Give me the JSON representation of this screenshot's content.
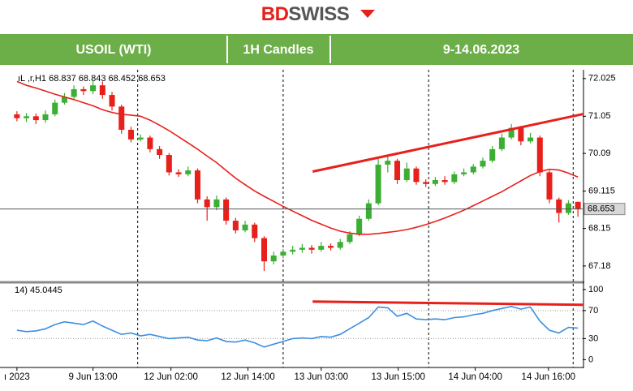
{
  "header": {
    "logo_a": "BD",
    "logo_b": "SWISS",
    "cells": [
      "USOIL (WTI)",
      "1H Candles",
      "9-14.06.2023"
    ]
  },
  "chart_data": [
    {
      "type": "candlestick",
      "title": "ıL ,r,H1  68.837 68.843 68.452 68.653",
      "up_color": "#3cae34",
      "down_color": "#e8201b",
      "open": [
        71.1,
        71.0,
        71.05,
        70.95,
        71.1,
        71.4,
        71.55,
        71.75,
        71.7,
        71.85,
        71.6,
        71.3,
        70.7,
        70.45,
        70.5,
        70.2,
        70.05,
        69.6,
        69.55,
        69.65,
        68.9,
        68.7,
        68.9,
        68.35,
        68.1,
        68.25,
        67.9,
        67.3,
        67.45,
        67.55,
        67.6,
        67.65,
        67.6,
        67.7,
        67.65,
        67.8,
        68.0,
        68.4,
        68.8,
        69.8,
        69.9,
        69.4,
        69.7,
        69.35,
        69.3,
        69.4,
        69.35,
        69.55,
        69.6,
        69.75,
        69.9,
        70.2,
        70.5,
        70.75,
        70.4,
        70.5,
        69.6,
        68.9,
        68.55,
        68.837
      ],
      "high": [
        71.18,
        71.13,
        71.12,
        71.2,
        71.48,
        71.65,
        71.85,
        71.82,
        72.0,
        71.95,
        71.68,
        71.35,
        70.78,
        70.58,
        70.55,
        70.28,
        70.1,
        69.68,
        69.75,
        69.7,
        68.98,
        69.0,
        68.95,
        68.42,
        68.35,
        68.3,
        67.95,
        67.55,
        67.62,
        67.7,
        67.75,
        67.72,
        67.8,
        67.76,
        67.88,
        68.08,
        68.48,
        68.9,
        69.95,
        70.05,
        69.95,
        69.85,
        69.75,
        69.42,
        69.48,
        69.5,
        69.62,
        69.7,
        69.82,
        69.98,
        70.28,
        70.6,
        70.85,
        70.8,
        70.62,
        70.55,
        69.65,
        68.95,
        68.88,
        68.843
      ],
      "low": [
        70.92,
        70.9,
        70.85,
        70.88,
        71.05,
        71.35,
        71.5,
        71.6,
        71.62,
        71.5,
        71.2,
        70.6,
        70.38,
        70.4,
        70.12,
        69.95,
        69.52,
        69.48,
        69.5,
        68.8,
        68.35,
        68.62,
        68.25,
        68.02,
        68.05,
        67.8,
        67.05,
        67.22,
        67.38,
        67.48,
        67.52,
        67.5,
        67.55,
        67.58,
        67.6,
        67.75,
        67.95,
        68.35,
        68.75,
        69.6,
        69.3,
        69.35,
        69.28,
        69.22,
        69.25,
        69.28,
        69.3,
        69.5,
        69.55,
        69.7,
        69.85,
        70.15,
        70.45,
        70.3,
        70.35,
        69.5,
        68.8,
        68.3,
        68.5,
        68.452
      ],
      "close": [
        71.0,
        71.05,
        70.95,
        71.1,
        71.4,
        71.55,
        71.75,
        71.7,
        71.85,
        71.6,
        71.3,
        70.7,
        70.45,
        70.5,
        70.2,
        70.05,
        69.6,
        69.55,
        69.65,
        68.9,
        68.7,
        68.9,
        68.35,
        68.1,
        68.25,
        67.9,
        67.3,
        67.45,
        67.55,
        67.6,
        67.65,
        67.6,
        67.7,
        67.65,
        67.8,
        68.0,
        68.4,
        68.8,
        69.8,
        69.9,
        69.4,
        69.7,
        69.35,
        69.3,
        69.4,
        69.35,
        69.55,
        69.6,
        69.75,
        69.9,
        70.2,
        70.5,
        70.75,
        70.4,
        70.5,
        69.6,
        68.9,
        68.55,
        68.8,
        68.653
      ],
      "moving_average": {
        "color": "#e8201b",
        "values": [
          71.95,
          71.85,
          71.78,
          71.7,
          71.62,
          71.55,
          71.48,
          71.4,
          71.32,
          71.22,
          71.15,
          71.1,
          71.08,
          71.05,
          70.95,
          70.82,
          70.68,
          70.52,
          70.36,
          70.2,
          70.02,
          69.85,
          69.65,
          69.45,
          69.28,
          69.12,
          68.98,
          68.85,
          68.72,
          68.6,
          68.48,
          68.36,
          68.26,
          68.16,
          68.08,
          68.03,
          68.0,
          68.0,
          68.02,
          68.05,
          68.08,
          68.12,
          68.18,
          68.25,
          68.33,
          68.42,
          68.52,
          68.62,
          68.74,
          68.86,
          68.98,
          69.1,
          69.24,
          69.38,
          69.52,
          69.62,
          69.68,
          69.66,
          69.58,
          69.48
        ]
      },
      "trendline": {
        "color": "#e8201b",
        "x": [
          31.1,
          59.6
        ],
        "y": [
          69.62,
          71.11
        ]
      },
      "xlim": [
        -0.5,
        59.5
      ],
      "ylim": [
        66.8,
        72.21
      ],
      "yticks": [
        72.025,
        71.05,
        70.09,
        69.115,
        68.15,
        67.18
      ]
    },
    {
      "type": "line",
      "title": "14) 45.0445",
      "color": "#3d8fe0",
      "values": [
        42,
        40,
        41,
        44,
        50,
        54,
        52,
        50,
        55,
        48,
        42,
        36,
        38,
        34,
        36,
        33,
        30,
        31,
        32,
        28,
        27,
        31,
        26,
        25,
        28,
        24,
        18,
        22,
        26,
        30,
        31,
        30,
        33,
        32,
        36,
        44,
        52,
        60,
        75,
        74,
        62,
        66,
        58,
        57,
        58,
        57,
        60,
        61,
        64,
        66,
        70,
        73,
        76,
        72,
        75,
        55,
        42,
        38,
        46,
        45.0445
      ],
      "trendline": {
        "color": "#e8201b",
        "x": [
          31.1,
          59.6
        ],
        "y": [
          82.8,
          78.2
        ]
      },
      "xlim": [
        -0.5,
        59.5
      ],
      "ylim": [
        -10,
        108
      ],
      "yticks": [
        100,
        70,
        30,
        0
      ],
      "xticks": [
        {
          "value": 0,
          "label": "ı 2023"
        },
        {
          "value": 8.0,
          "label": "9 Jun 13:00"
        },
        {
          "value": 16.2,
          "label": "12 Jun 02:00"
        },
        {
          "value": 24.3,
          "label": "12 Jun 14:00"
        },
        {
          "value": 32.0,
          "label": "13 Jun 03:00"
        },
        {
          "value": 40.1,
          "label": "13 Jun 15:00"
        },
        {
          "value": 48.2,
          "label": "14 Jun 04:00"
        },
        {
          "value": 55.9,
          "label": "14 Jun 16:00"
        }
      ],
      "vlines": [
        12.7,
        28.0,
        43.3,
        58.5
      ]
    }
  ]
}
